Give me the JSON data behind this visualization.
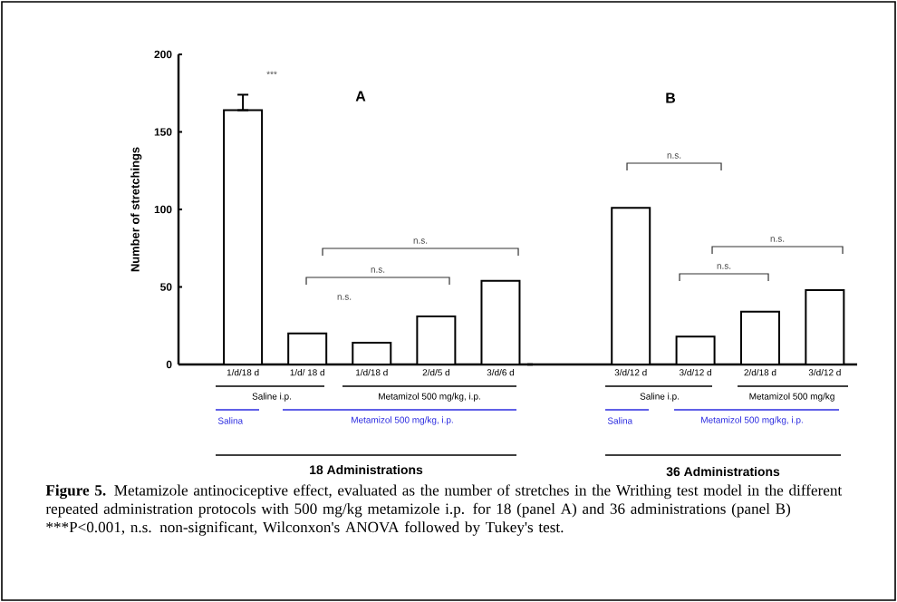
{
  "chart_data": [
    {
      "type": "bar",
      "title": "A",
      "ylabel": "Number of stretchings",
      "xlabel": "18 Administrations",
      "categories": [
        "1/d/18 d",
        "1/d/ 18 d",
        "1/d/18 d",
        "2/d/5 d",
        "3/d/6 d"
      ],
      "values": [
        164,
        20,
        14,
        31,
        54
      ],
      "colors": [
        "#ffffff",
        "#ffffff",
        "#ffffff",
        "#ffffff",
        "#ffffff"
      ],
      "errors": [
        [
          164,
          174
        ],
        null,
        null,
        null,
        null
      ],
      "ylim": [
        0,
        200
      ],
      "yticks": [
        0,
        50,
        100,
        150,
        200
      ],
      "annotations": [
        "***",
        "n.s.",
        "n.s.",
        "n.s.",
        "Saline i.p.",
        "Metamizol 500 mg/kg, i.p.",
        "Salina",
        "Metamizol 500 mg/kg, i.p."
      ]
    },
    {
      "type": "bar",
      "title": "B",
      "xlabel": "36 Administrations",
      "categories": [
        "3/d/12 d",
        "3/d/12 d",
        "2/d/18 d",
        "3/d/12 d"
      ],
      "values": [
        101,
        18,
        34,
        48
      ],
      "colors": [
        "#ffffff",
        "#ffffff",
        "#ffffff",
        "#ffffff"
      ],
      "ylim": [
        0,
        200
      ],
      "tick_labels": "x",
      "annotations": [
        "n.s.",
        "n.s.",
        "n.s.",
        "Saline i.p.",
        "Metamizol 500 mg/kg",
        "Salina",
        "Metamizol 500 mg/kg, i.p.",
        "**Figure 5.** Metamizole antinociceptive effect, evaluated as the number of stretches in the Writhing test model in the different repeated administration protocols with 500 mg/kg metamizole i.p. for 18 (panel A) and 36 administrations (panel B) ***P<0.001, n.s. non-significant, Wilconxon's ANOVA followed by Tukey's test."
      ]
    }
  ]
}
